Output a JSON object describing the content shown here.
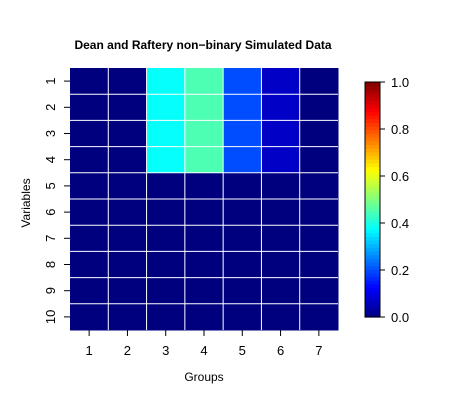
{
  "chart_data": {
    "type": "heatmap",
    "title": "Dean and Raftery non−binary Simulated Data",
    "xlabel": "Groups",
    "ylabel": "Variables",
    "x_categories": [
      "1",
      "2",
      "3",
      "4",
      "5",
      "6",
      "7"
    ],
    "y_categories": [
      "1",
      "2",
      "3",
      "4",
      "5",
      "6",
      "7",
      "8",
      "9",
      "10"
    ],
    "values": [
      [
        0.0,
        0.0,
        0.38,
        0.45,
        0.2,
        0.07,
        0.0
      ],
      [
        0.0,
        0.0,
        0.38,
        0.45,
        0.2,
        0.07,
        0.0
      ],
      [
        0.0,
        0.0,
        0.38,
        0.45,
        0.2,
        0.07,
        0.0
      ],
      [
        0.0,
        0.0,
        0.38,
        0.45,
        0.2,
        0.07,
        0.0
      ],
      [
        0.0,
        0.0,
        0.0,
        0.0,
        0.0,
        0.0,
        0.0
      ],
      [
        0.0,
        0.0,
        0.0,
        0.0,
        0.0,
        0.0,
        0.0
      ],
      [
        0.0,
        0.0,
        0.0,
        0.0,
        0.0,
        0.0,
        0.0
      ],
      [
        0.0,
        0.0,
        0.0,
        0.0,
        0.0,
        0.0,
        0.0
      ],
      [
        0.0,
        0.0,
        0.0,
        0.0,
        0.0,
        0.0,
        0.0
      ],
      [
        0.0,
        0.0,
        0.0,
        0.0,
        0.0,
        0.0,
        0.0
      ]
    ],
    "colorbar": {
      "range": [
        0,
        1
      ],
      "ticks": [
        "0.0",
        "0.2",
        "0.4",
        "0.6",
        "0.8",
        "1.0"
      ],
      "colormap": "jet",
      "stops": [
        "#00007f",
        "#0000ff",
        "#007fff",
        "#00ffff",
        "#7fff7f",
        "#ffff00",
        "#ff7f00",
        "#ff0000",
        "#7f0000"
      ]
    },
    "grid": true,
    "grid_color": "#ffffff",
    "legend_position": "right"
  }
}
